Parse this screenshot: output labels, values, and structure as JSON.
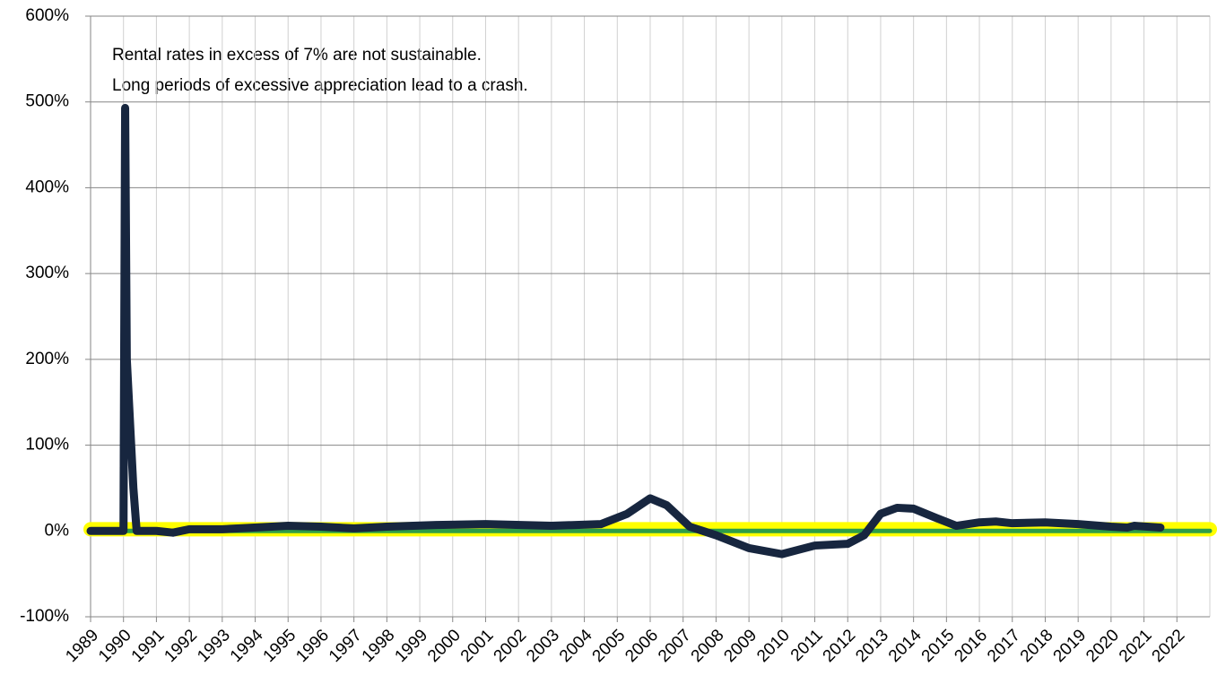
{
  "chart_data": {
    "type": "line",
    "annotations": [
      "Rental rates in excess of 7% are not sustainable.",
      "Long periods of excessive appreciation lead to a crash."
    ],
    "xlim": [
      1989,
      2023
    ],
    "xticks": [
      1989,
      1990,
      1991,
      1992,
      1993,
      1994,
      1995,
      1996,
      1997,
      1998,
      1999,
      2000,
      2001,
      2002,
      2003,
      2004,
      2005,
      2006,
      2007,
      2008,
      2009,
      2010,
      2011,
      2012,
      2013,
      2014,
      2015,
      2016,
      2017,
      2018,
      2019,
      2020,
      2021,
      2022
    ],
    "ylim": [
      -100,
      600
    ],
    "yticks": [
      {
        "value": -100,
        "label": "-100%"
      },
      {
        "value": 0,
        "label": "0%"
      },
      {
        "value": 100,
        "label": "100%"
      },
      {
        "value": 200,
        "label": "200%"
      },
      {
        "value": 300,
        "label": "300%"
      },
      {
        "value": 400,
        "label": "400%"
      },
      {
        "value": 500,
        "label": "500%"
      },
      {
        "value": 600,
        "label": "600%"
      }
    ],
    "grid": true,
    "series": [
      {
        "color": "#ffff00",
        "x": [
          1989,
          2023
        ],
        "values": [
          2,
          2
        ]
      },
      {
        "color": "#2e9e48",
        "x": [
          1989,
          2023
        ],
        "values": [
          0,
          0
        ]
      },
      {
        "color": "#17263f",
        "x": [
          1989,
          1990,
          1990.05,
          1990.1,
          1990.3,
          1990.4,
          1991,
          1991.5,
          1992,
          1993,
          1994.5,
          1995,
          1996,
          1997,
          1998,
          1999.5,
          2001,
          2003,
          2004.5,
          2005.3,
          2006,
          2006.5,
          2007.2,
          2008,
          2009,
          2010,
          2011,
          2012,
          2012.5,
          2013,
          2013.5,
          2014,
          2014.7,
          2015.3,
          2016,
          2016.5,
          2017,
          2018,
          2019,
          2020,
          2020.5,
          2020.7,
          2021.5
        ],
        "values": [
          0,
          0,
          493,
          200,
          50,
          0,
          0,
          -2,
          2,
          2,
          5,
          6,
          5,
          3,
          5,
          7,
          8,
          6,
          8,
          20,
          38,
          30,
          5,
          -5,
          -20,
          -27,
          -17,
          -15,
          -5,
          20,
          27,
          26,
          15,
          6,
          10,
          11,
          9,
          10,
          8,
          5,
          4,
          6,
          4
        ]
      }
    ]
  }
}
